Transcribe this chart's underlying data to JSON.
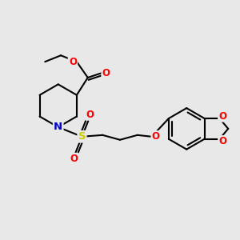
{
  "background_color": "#e8e8e8",
  "bond_color": "#000000",
  "bond_width": 1.5,
  "atom_colors": {
    "O": "#ff0000",
    "N": "#0000cc",
    "S": "#cccc00",
    "C": "#000000"
  },
  "font_size": 8.5,
  "figsize": [
    3.0,
    3.0
  ],
  "dpi": 100
}
